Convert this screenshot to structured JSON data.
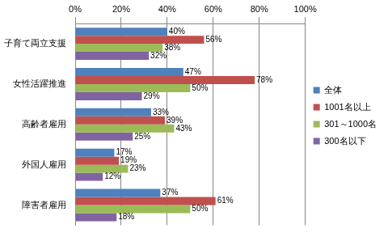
{
  "chart_data": {
    "type": "bar",
    "orientation": "horizontal",
    "categories": [
      "子育て両立支援",
      "女性活躍推進",
      "高齢者雇用",
      "外国人雇用",
      "障害者雇用"
    ],
    "series": [
      {
        "name": "全体",
        "color": "#4F81BD",
        "values": [
          40,
          47,
          33,
          17,
          37
        ],
        "value_labels": [
          "40%",
          "47%",
          "33%",
          "17%",
          "37%"
        ]
      },
      {
        "name": "1001名以上",
        "color": "#C0504D",
        "values": [
          56,
          78,
          39,
          19,
          61
        ],
        "value_labels": [
          "56%",
          "78%",
          "39%",
          "19%",
          "61%"
        ]
      },
      {
        "name": "301～1000名",
        "color": "#9BBB59",
        "values": [
          38,
          50,
          43,
          23,
          50
        ],
        "value_labels": [
          "38%",
          "50%",
          "43%",
          "23%",
          "50%"
        ]
      },
      {
        "name": "300名以下",
        "color": "#8064A2",
        "values": [
          32,
          29,
          25,
          12,
          18
        ],
        "value_labels": [
          "32%",
          "29%",
          "25%",
          "12%",
          "18%"
        ]
      }
    ],
    "xlim": [
      0,
      100
    ],
    "xticks": [
      {
        "value": 0,
        "label": "0%"
      },
      {
        "value": 20,
        "label": "20%"
      },
      {
        "value": 40,
        "label": "40%"
      },
      {
        "value": 60,
        "label": "60%"
      },
      {
        "value": 80,
        "label": "80%"
      },
      {
        "value": 100,
        "label": "100%"
      }
    ],
    "grid": true,
    "legend": "right",
    "data_labels": true
  }
}
